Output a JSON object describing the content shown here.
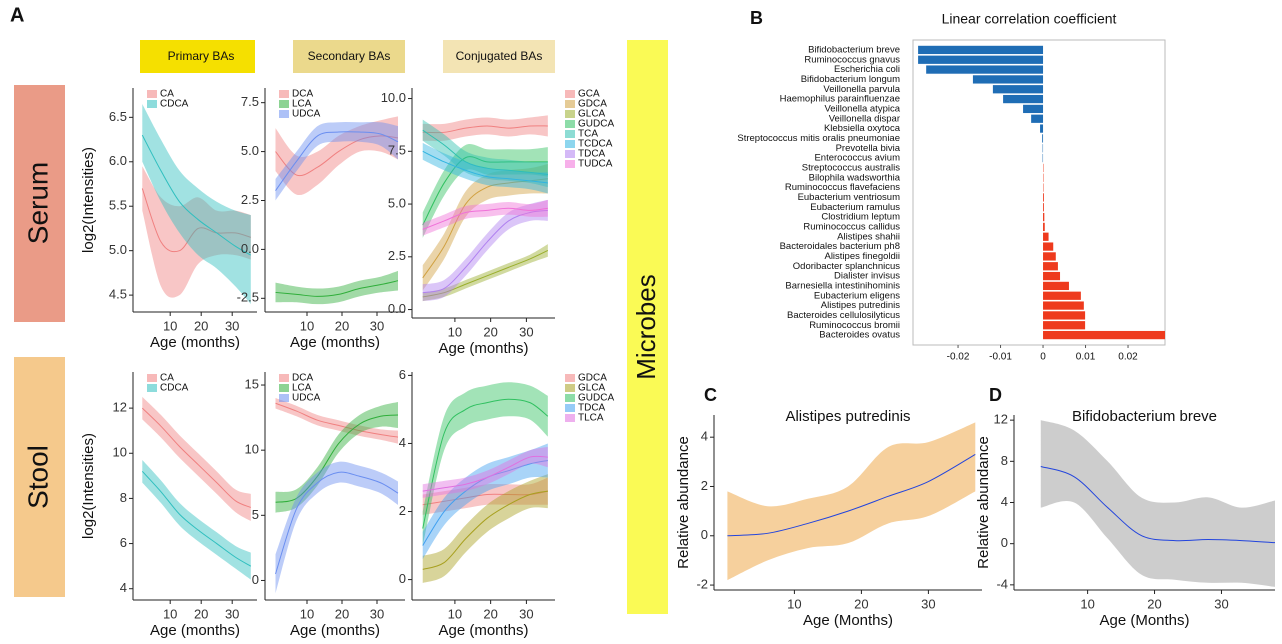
{
  "figure": {
    "panel_labels": [
      "A",
      "B",
      "C",
      "D"
    ],
    "column_headers": [
      "Primary BAs",
      "Secondary  BAs",
      "Conjugated BAs"
    ],
    "row_labels": [
      "Serum",
      "Stool"
    ],
    "side_label": "Microbes"
  },
  "chart_data": [
    {
      "type": "line",
      "ylabel": "log2(Intensities)",
      "xlabel": "Age (months)",
      "legend": "upper left",
      "xlim": [
        -2,
        38
      ],
      "xticks": [
        10,
        20,
        30
      ],
      "ylim": [
        4.31,
        6.83
      ],
      "yticks": [
        4.5,
        {
          "value": 5,
          "label": "5.0"
        },
        5.5,
        {
          "value": 6,
          "label": "6.0"
        },
        6.5
      ],
      "x": [
        1,
        7,
        13,
        19,
        25,
        31,
        36
      ],
      "series": [
        {
          "name": "CA",
          "color": "#f08080",
          "values": [
            5.7,
            5.1,
            5.0,
            5.25,
            5.2,
            5.2,
            5.15
          ],
          "lower": [
            5.45,
            4.6,
            4.5,
            4.85,
            4.95,
            4.95,
            4.9
          ],
          "upper": [
            5.95,
            5.6,
            5.5,
            5.6,
            5.45,
            5.45,
            5.4
          ]
        },
        {
          "name": "CDCA",
          "color": "#2fbfbf",
          "values": [
            6.3,
            5.9,
            5.55,
            5.35,
            5.2,
            5.05,
            4.95
          ],
          "lower": [
            6.0,
            5.55,
            5.2,
            4.95,
            4.8,
            4.6,
            4.4
          ],
          "upper": [
            6.65,
            6.25,
            5.9,
            5.7,
            5.55,
            5.45,
            5.4
          ]
        }
      ]
    },
    {
      "type": "line",
      "xlabel": "Age (months)",
      "legend": "upper left",
      "xlim": [
        -2,
        38
      ],
      "xticks": [
        10,
        20,
        30
      ],
      "ylim": [
        -3.2,
        8.25
      ],
      "yticks": [
        -2.5,
        {
          "value": 0,
          "label": "0.0"
        },
        2.5,
        {
          "value": 5,
          "label": "5.0"
        },
        7.5
      ],
      "x": [
        1,
        7,
        13,
        19,
        25,
        31,
        36
      ],
      "series": [
        {
          "name": "DCA",
          "color": "#f08080",
          "values": [
            5.0,
            3.8,
            4.2,
            5.0,
            5.6,
            5.8,
            5.7
          ],
          "lower": [
            4.0,
            2.8,
            3.3,
            4.3,
            5.0,
            5.0,
            4.6
          ],
          "upper": [
            6.2,
            4.8,
            5.0,
            5.8,
            6.3,
            6.6,
            6.8
          ]
        },
        {
          "name": "LCA",
          "color": "#2fae3a",
          "values": [
            -2.2,
            -2.3,
            -2.4,
            -2.3,
            -2.0,
            -1.8,
            -1.6
          ],
          "lower": [
            -2.7,
            -2.7,
            -2.8,
            -2.7,
            -2.4,
            -2.2,
            -2.1
          ],
          "upper": [
            -1.7,
            -1.9,
            -2.0,
            -1.9,
            -1.6,
            -1.4,
            -1.1
          ]
        },
        {
          "name": "UDCA",
          "color": "#6a8ef0",
          "values": [
            3.0,
            4.5,
            5.8,
            6.0,
            6.0,
            5.9,
            5.5
          ],
          "lower": [
            2.5,
            4.0,
            5.3,
            5.5,
            5.5,
            5.3,
            4.6
          ],
          "upper": [
            3.6,
            5.0,
            6.3,
            6.5,
            6.5,
            6.5,
            6.3
          ]
        }
      ]
    },
    {
      "type": "line",
      "xlabel": "Age (months)",
      "legend": "outside right",
      "xlim": [
        -2,
        38
      ],
      "xticks": [
        10,
        20,
        30
      ],
      "ylim": [
        -0.4,
        10.5
      ],
      "yticks": [
        {
          "value": 0,
          "label": "0.0"
        },
        2.5,
        {
          "value": 5,
          "label": "5.0"
        },
        7.5,
        {
          "value": 10,
          "label": "10.0"
        }
      ],
      "x": [
        1,
        7,
        13,
        19,
        25,
        31,
        36
      ],
      "series": [
        {
          "name": "GCA",
          "color": "#f08080",
          "values": [
            8.4,
            8.4,
            8.6,
            8.7,
            8.6,
            8.7,
            8.7
          ],
          "lower": [
            8.0,
            8.0,
            8.2,
            8.3,
            8.2,
            8.3,
            8.2
          ],
          "upper": [
            8.8,
            8.8,
            9.0,
            9.1,
            9.0,
            9.1,
            9.2
          ]
        },
        {
          "name": "GDCA",
          "color": "#d0a040",
          "values": [
            1.5,
            3.0,
            5.0,
            5.8,
            6.0,
            6.1,
            6.2
          ],
          "lower": [
            0.9,
            2.4,
            4.4,
            5.2,
            5.4,
            5.5,
            5.5
          ],
          "upper": [
            2.1,
            3.6,
            5.6,
            6.4,
            6.6,
            6.7,
            6.9
          ]
        },
        {
          "name": "GLCA",
          "color": "#9aae2c",
          "values": [
            0.6,
            0.8,
            1.2,
            1.6,
            2.0,
            2.4,
            2.8
          ],
          "lower": [
            0.4,
            0.6,
            1.0,
            1.4,
            1.8,
            2.2,
            2.5
          ],
          "upper": [
            0.8,
            1.0,
            1.4,
            1.8,
            2.2,
            2.6,
            3.1
          ]
        },
        {
          "name": "GUDCA",
          "color": "#30c060",
          "values": [
            4.0,
            6.0,
            7.2,
            7.0,
            7.0,
            7.0,
            7.0
          ],
          "lower": [
            3.4,
            5.4,
            6.6,
            6.4,
            6.4,
            6.4,
            6.3
          ],
          "upper": [
            4.6,
            6.6,
            7.8,
            7.6,
            7.6,
            7.6,
            7.7
          ]
        },
        {
          "name": "TCA",
          "color": "#2fc0b0",
          "values": [
            8.5,
            7.8,
            7.0,
            6.7,
            6.6,
            6.5,
            6.4
          ],
          "lower": [
            8.0,
            7.3,
            6.5,
            6.2,
            6.1,
            6.0,
            5.8
          ],
          "upper": [
            9.0,
            8.3,
            7.5,
            7.2,
            7.1,
            7.0,
            7.0
          ]
        },
        {
          "name": "TCDCA",
          "color": "#30b4e0",
          "values": [
            7.5,
            7.0,
            6.6,
            6.3,
            6.2,
            6.1,
            6.0
          ],
          "lower": [
            7.1,
            6.6,
            6.2,
            5.9,
            5.8,
            5.7,
            5.5
          ],
          "upper": [
            7.9,
            7.4,
            7.0,
            6.7,
            6.6,
            6.5,
            6.5
          ]
        },
        {
          "name": "TDCA",
          "color": "#b080f0",
          "values": [
            0.8,
            1.0,
            2.0,
            3.2,
            4.2,
            4.6,
            4.7
          ],
          "lower": [
            0.4,
            0.6,
            1.6,
            2.8,
            3.8,
            4.2,
            4.2
          ],
          "upper": [
            1.2,
            1.4,
            2.4,
            3.6,
            4.6,
            5.0,
            5.2
          ]
        },
        {
          "name": "TUDCA",
          "color": "#f070d8",
          "values": [
            3.8,
            4.2,
            4.6,
            4.7,
            4.8,
            4.7,
            4.8
          ],
          "lower": [
            3.5,
            3.9,
            4.3,
            4.4,
            4.5,
            4.4,
            4.4
          ],
          "upper": [
            4.1,
            4.5,
            4.9,
            5.0,
            5.1,
            5.0,
            5.2
          ]
        }
      ]
    },
    {
      "type": "line",
      "ylabel": "log2(Intensities)",
      "xlabel": "Age (months)",
      "legend": "upper left",
      "xlim": [
        -2,
        38
      ],
      "xticks": [
        10,
        20,
        30
      ],
      "ylim": [
        3.5,
        13.6
      ],
      "yticks": [
        4,
        6,
        8,
        10,
        12
      ],
      "x": [
        1,
        7,
        13,
        19,
        25,
        31,
        36
      ],
      "series": [
        {
          "name": "CA",
          "color": "#f08080",
          "values": [
            12.0,
            11.2,
            10.3,
            9.5,
            8.7,
            7.9,
            7.6
          ],
          "lower": [
            11.5,
            10.7,
            9.8,
            9.0,
            8.2,
            7.4,
            7.0
          ],
          "upper": [
            12.5,
            11.7,
            10.8,
            10.0,
            9.2,
            8.4,
            8.2
          ]
        },
        {
          "name": "CDCA",
          "color": "#2fbfbf",
          "values": [
            9.2,
            8.3,
            7.3,
            6.6,
            6.0,
            5.4,
            5.0
          ],
          "lower": [
            8.7,
            7.8,
            6.8,
            6.1,
            5.5,
            4.9,
            4.4
          ],
          "upper": [
            9.7,
            8.8,
            7.8,
            7.1,
            6.5,
            5.9,
            5.6
          ]
        }
      ]
    },
    {
      "type": "line",
      "xlabel": "Age (months)",
      "legend": "upper left",
      "xlim": [
        -2,
        38
      ],
      "xticks": [
        10,
        20,
        30
      ],
      "ylim": [
        -1.5,
        16
      ],
      "yticks": [
        0,
        5,
        10,
        15
      ],
      "x": [
        1,
        7,
        13,
        19,
        25,
        31,
        36
      ],
      "series": [
        {
          "name": "DCA",
          "color": "#f08080",
          "values": [
            13.6,
            13.0,
            12.3,
            11.9,
            11.5,
            11.2,
            11.0
          ],
          "lower": [
            13.2,
            12.6,
            11.9,
            11.5,
            11.1,
            10.8,
            10.5
          ],
          "upper": [
            14.0,
            13.4,
            12.7,
            12.3,
            11.9,
            11.6,
            11.5
          ]
        },
        {
          "name": "LCA",
          "color": "#2fae3a",
          "values": [
            6.0,
            6.3,
            8.0,
            10.5,
            12.0,
            12.6,
            12.7
          ],
          "lower": [
            5.2,
            5.6,
            7.3,
            9.8,
            11.3,
            11.8,
            11.7
          ],
          "upper": [
            6.8,
            7.0,
            8.7,
            11.2,
            12.7,
            13.4,
            13.7
          ]
        },
        {
          "name": "UDCA",
          "color": "#6a8ef0",
          "values": [
            0.5,
            5.5,
            7.5,
            8.3,
            8.0,
            7.5,
            6.7
          ],
          "lower": [
            -1.0,
            4.6,
            6.7,
            7.5,
            7.2,
            6.7,
            5.8
          ],
          "upper": [
            2.0,
            6.4,
            8.3,
            9.1,
            8.8,
            8.3,
            7.6
          ]
        }
      ]
    },
    {
      "type": "line",
      "xlabel": "Age (months)",
      "legend": "outside right",
      "xlim": [
        -2,
        38
      ],
      "xticks": [
        10,
        20,
        30
      ],
      "ylim": [
        -0.6,
        6.1
      ],
      "yticks": [
        0,
        2,
        4,
        6
      ],
      "x": [
        1,
        7,
        13,
        19,
        25,
        31,
        36
      ],
      "series": [
        {
          "name": "GDCA",
          "color": "#f08080",
          "values": [
            2.2,
            2.3,
            2.4,
            2.5,
            2.5,
            2.5,
            2.6
          ],
          "lower": [
            1.9,
            2.0,
            2.1,
            2.2,
            2.2,
            2.2,
            2.2
          ],
          "upper": [
            2.5,
            2.6,
            2.7,
            2.8,
            2.8,
            2.8,
            3.0
          ]
        },
        {
          "name": "GLCA",
          "color": "#a8a020",
          "values": [
            0.3,
            0.5,
            1.2,
            1.8,
            2.2,
            2.5,
            2.6
          ],
          "lower": [
            -0.1,
            0.1,
            0.8,
            1.4,
            1.8,
            2.1,
            2.1
          ],
          "upper": [
            0.7,
            0.9,
            1.6,
            2.2,
            2.6,
            2.9,
            3.1
          ]
        },
        {
          "name": "GUDCA",
          "color": "#30c060",
          "values": [
            1.5,
            4.3,
            5.0,
            5.2,
            5.3,
            5.2,
            4.8
          ],
          "lower": [
            1.0,
            3.8,
            4.5,
            4.7,
            4.8,
            4.7,
            4.2
          ],
          "upper": [
            2.0,
            4.8,
            5.5,
            5.7,
            5.8,
            5.7,
            5.4
          ]
        },
        {
          "name": "TDCA",
          "color": "#40a0f0",
          "values": [
            1.0,
            2.0,
            2.6,
            3.0,
            3.2,
            3.4,
            3.5
          ],
          "lower": [
            0.6,
            1.6,
            2.2,
            2.6,
            2.8,
            3.0,
            3.0
          ],
          "upper": [
            1.4,
            2.4,
            3.0,
            3.4,
            3.6,
            3.8,
            4.0
          ]
        },
        {
          "name": "TLCA",
          "color": "#e070e0",
          "values": [
            2.6,
            2.7,
            2.8,
            3.0,
            3.3,
            3.6,
            3.6
          ],
          "lower": [
            2.4,
            2.5,
            2.6,
            2.8,
            3.1,
            3.4,
            3.3
          ],
          "upper": [
            2.8,
            2.9,
            3.0,
            3.2,
            3.5,
            3.8,
            3.9
          ]
        }
      ]
    },
    {
      "type": "barh",
      "title": "Linear correlation coefficient",
      "categories": [
        "Bifidobacterium breve",
        "Ruminococcus gnavus",
        "Escherichia coli",
        "Bifidobacterium longum",
        "Veillonella parvula",
        "Haemophilus parainfluenzae",
        "Veillonella atypica",
        "Veillonella dispar",
        "Klebsiella oxytoca",
        "Streptococcus mitis oralis pneumoniae",
        "Prevotella bivia",
        "Enterococcus avium",
        "Streptococcus australis",
        "Bilophila wadsworthia",
        "Ruminococcus flavefaciens",
        "Eubacterium ventriosum",
        "Eubacterium ramulus",
        "Clostridium leptum",
        "Ruminococcus callidus",
        "Alistipes shahii",
        "Bacteroidales bacterium ph8",
        "Alistipes finegoldii",
        "Odoribacter splanchnicus",
        "Dialister invisus",
        "Barnesiella intestinihominis",
        "Eubacterium eligens",
        "Alistipes putredinis",
        "Bacteroides cellulosilyticus",
        "Ruminococcus bromii",
        "Bacteroides ovatus"
      ],
      "values": [
        -0.0294,
        -0.0294,
        -0.0275,
        -0.0165,
        -0.0118,
        -0.0094,
        -0.0047,
        -0.0028,
        -0.0007,
        -0.0002,
        -0.0001,
        -0.0001,
        0.0001,
        0.0001,
        0.0001,
        0.0002,
        0.0002,
        0.0003,
        0.0004,
        0.0013,
        0.0024,
        0.003,
        0.0035,
        0.004,
        0.0061,
        0.0089,
        0.0096,
        0.0099,
        0.0099,
        0.0287
      ],
      "colors": {
        "negative": "#1f6db5",
        "positive": "#ee3a1d"
      },
      "xlim": [
        -0.0306,
        0.0287
      ],
      "xticks": [
        -0.02,
        -0.01,
        0,
        0.01,
        0.02
      ]
    },
    {
      "type": "line",
      "title": "Alistipes putredinis",
      "ylabel": "Relative abundance",
      "xlabel": "Age (Months)",
      "xlim": [
        -2,
        38
      ],
      "xticks": [
        10,
        20,
        30
      ],
      "ylim": [
        -2.2,
        4.9
      ],
      "yticks": [
        -2,
        0,
        2,
        4
      ],
      "x": [
        0,
        6,
        12,
        18,
        24,
        30,
        37
      ],
      "series": [
        {
          "color": "#2244dd",
          "band_color": "#f5c88c",
          "values": [
            0,
            0.1,
            0.5,
            1.0,
            1.6,
            2.2,
            3.3
          ],
          "lower": [
            -1.8,
            -1.0,
            -0.5,
            -0.3,
            0.5,
            0.8,
            1.8
          ],
          "upper": [
            1.8,
            1.2,
            1.5,
            2.0,
            3.6,
            3.8,
            4.6
          ]
        }
      ]
    },
    {
      "type": "line",
      "title": "Bifidobacterium breve",
      "ylabel": "Relative abundance",
      "xlabel": "Age (Months)",
      "xlim": [
        -1,
        38
      ],
      "xticks": [
        10,
        20,
        30
      ],
      "ylim": [
        -4.5,
        12.5
      ],
      "yticks": [
        -4,
        0,
        4,
        8,
        12
      ],
      "x": [
        3,
        8,
        13,
        18,
        23,
        28,
        33,
        38
      ],
      "series": [
        {
          "color": "#2244dd",
          "band_color": "#c4c4c4",
          "values": [
            7.5,
            6.5,
            3.5,
            0.8,
            0.3,
            0.4,
            0.3,
            0.1
          ],
          "lower": [
            3.5,
            4.0,
            0.5,
            -3.0,
            -3.5,
            -3.8,
            -3.8,
            -4.2
          ],
          "upper": [
            12,
            11,
            8,
            4.5,
            4.0,
            4.5,
            3.5,
            4.2
          ]
        }
      ]
    }
  ]
}
